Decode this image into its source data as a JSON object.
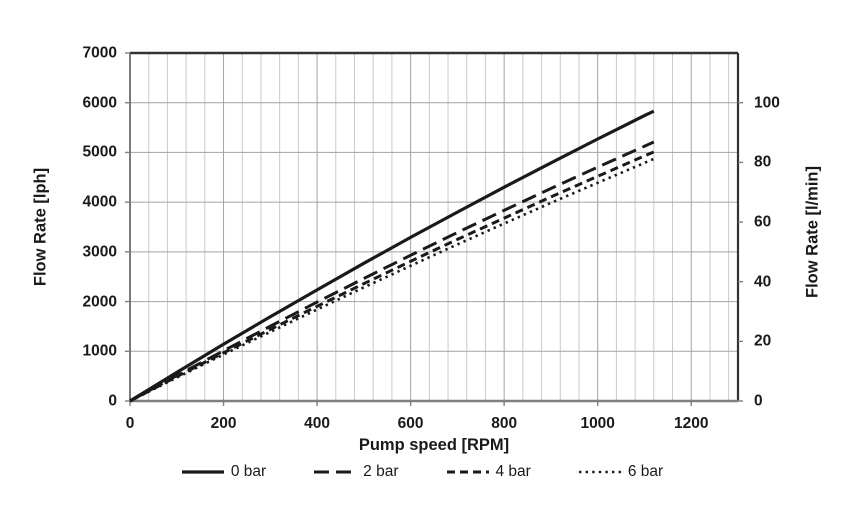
{
  "colors": {
    "line": "#1a1a1a",
    "grid_minor": "#c9c9c9",
    "grid_major": "#a3a3a3",
    "border_dark": "#333333",
    "axis": "#808080",
    "text": "#1a1a1a"
  },
  "chart_data": {
    "type": "line",
    "title": "",
    "grid": true,
    "legend_position": "bottom",
    "x": {
      "title": "Pump speed [RPM]",
      "min": 0,
      "max": 1300,
      "major_step": 200,
      "minor_step": 40,
      "ticks": [
        0,
        200,
        400,
        600,
        800,
        1000,
        1200
      ]
    },
    "y_left": {
      "title": "Flow Rate [lph]",
      "min": 0,
      "max": 7000,
      "ticks": [
        0,
        1000,
        2000,
        3000,
        4000,
        5000,
        6000,
        7000
      ]
    },
    "y_right": {
      "title": "Flow Rate [l/min]",
      "min": 0,
      "ticks": [
        0,
        20,
        40,
        60,
        80,
        100
      ],
      "lph_per_unit": 60
    },
    "series_x": [
      0,
      100,
      200,
      300,
      400,
      500,
      600,
      700,
      800,
      900,
      1000,
      1100,
      1120
    ],
    "series": [
      {
        "name": "0 bar",
        "dash": "solid",
        "values": [
          0,
          575,
          1140,
          1695,
          2235,
          2770,
          3290,
          3800,
          4300,
          4790,
          5270,
          5740,
          5830
        ]
      },
      {
        "name": "2 bar",
        "dash": "long-dash",
        "values": [
          0,
          510,
          1010,
          1505,
          1990,
          2465,
          2930,
          3390,
          3835,
          4275,
          4705,
          5125,
          5210
        ]
      },
      {
        "name": "4 bar",
        "dash": "dash",
        "values": [
          0,
          490,
          970,
          1440,
          1905,
          2360,
          2810,
          3250,
          3680,
          4105,
          4520,
          4930,
          5010
        ]
      },
      {
        "name": "6 bar",
        "dash": "dot",
        "values": [
          0,
          470,
          935,
          1390,
          1840,
          2285,
          2720,
          3150,
          3570,
          3985,
          4390,
          4790,
          4870
        ]
      }
    ]
  }
}
